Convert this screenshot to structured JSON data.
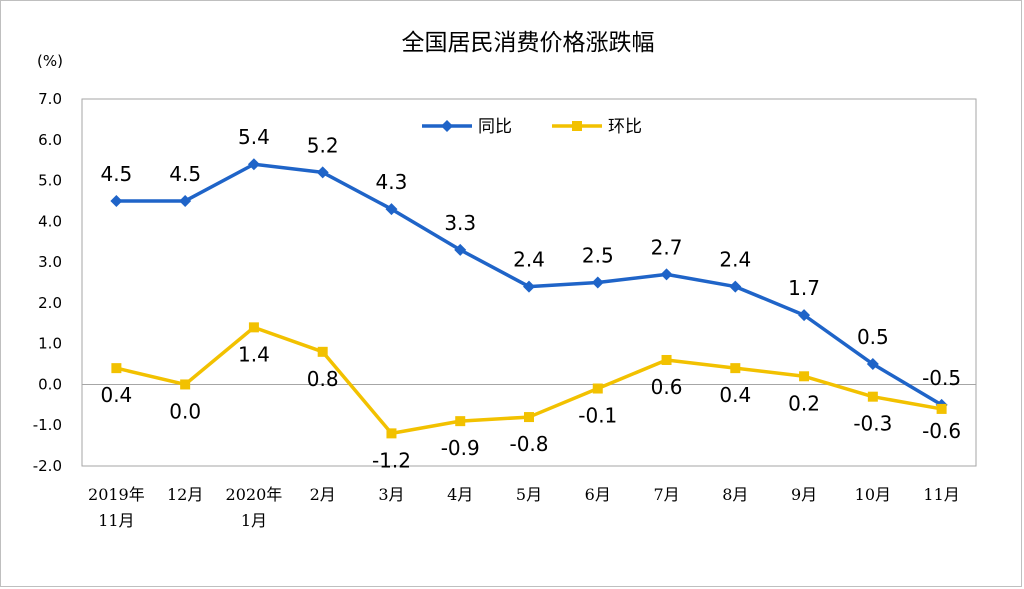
{
  "chart_data": {
    "type": "line",
    "title": "全国居民消费价格涨跌幅",
    "unit_label": "(%)",
    "categories": [
      [
        "2019年",
        "11月"
      ],
      [
        "12月"
      ],
      [
        "2020年",
        "1月"
      ],
      [
        "2月"
      ],
      [
        "3月"
      ],
      [
        "4月"
      ],
      [
        "5月"
      ],
      [
        "6月"
      ],
      [
        "7月"
      ],
      [
        "8月"
      ],
      [
        "9月"
      ],
      [
        "10月"
      ],
      [
        "11月"
      ]
    ],
    "ylim": [
      -2.0,
      7.0
    ],
    "yticks": [
      "7.0",
      "6.0",
      "5.0",
      "4.0",
      "3.0",
      "2.0",
      "1.0",
      "0.0",
      "-1.0",
      "-2.0"
    ],
    "grid": false,
    "legend_position": "top-center",
    "series": [
      {
        "name": "同比",
        "color": "#1f64c8",
        "marker": "diamond",
        "values": [
          4.5,
          4.5,
          5.4,
          5.2,
          4.3,
          3.3,
          2.4,
          2.5,
          2.7,
          2.4,
          1.7,
          0.5,
          -0.5
        ],
        "labels": [
          "4.5",
          "4.5",
          "5.4",
          "5.2",
          "4.3",
          "3.3",
          "2.4",
          "2.5",
          "2.7",
          "2.4",
          "1.7",
          "0.5",
          "-0.5"
        ]
      },
      {
        "name": "环比",
        "color": "#f2c100",
        "marker": "square",
        "values": [
          0.4,
          0.0,
          1.4,
          0.8,
          -1.2,
          -0.9,
          -0.8,
          -0.1,
          0.6,
          0.4,
          0.2,
          -0.3,
          -0.6
        ],
        "labels": [
          "0.4",
          "0.0",
          "1.4",
          "0.8",
          "-1.2",
          "-0.9",
          "-0.8",
          "-0.1",
          "0.6",
          "0.4",
          "0.2",
          "-0.3",
          "-0.6"
        ]
      }
    ]
  }
}
